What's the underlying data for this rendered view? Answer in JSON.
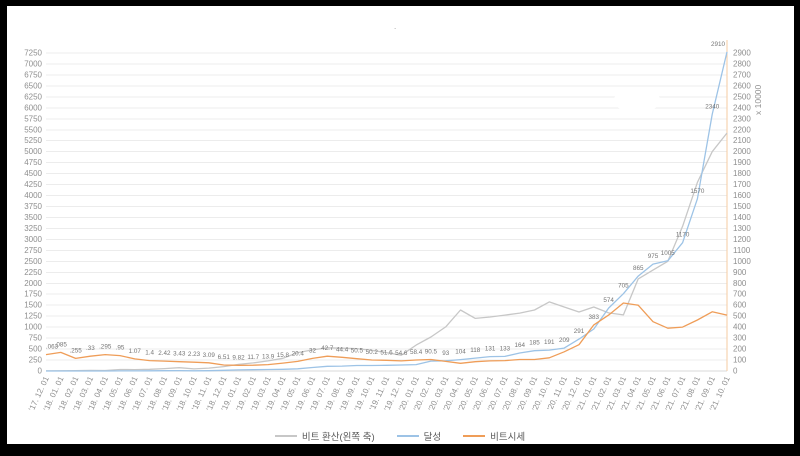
{
  "decorations": {
    "dot": "."
  },
  "chart_data": {
    "type": "line",
    "title": "",
    "legend_position": "bottom",
    "grid": true,
    "categories": [
      "'17. 12. 01",
      "'18. 01. 01",
      "'18. 02. 01",
      "'18. 03. 01",
      "'18. 04. 01",
      "'18. 05. 01",
      "'18. 06. 01",
      "'18. 07. 01",
      "'18. 08. 01",
      "'18. 09. 01",
      "'18. 10. 01",
      "'18. 11. 01",
      "'18. 12. 01",
      "'19. 01. 01",
      "'19. 02. 01",
      "'19. 03. 01",
      "'19. 04. 01",
      "'19. 05. 01",
      "'19. 06. 01",
      "'19. 07. 01",
      "'19. 08. 01",
      "'19. 09. 01",
      "'19. 10. 01",
      "'19. 11. 01",
      "'19. 12. 01",
      "'20. 01. 01",
      "'20. 02. 01",
      "'20. 03. 01",
      "'20. 04. 01",
      "'20. 05. 01",
      "'20. 06. 01",
      "'20. 07. 01",
      "'20. 08. 01",
      "'20. 09. 01",
      "'20. 10. 01",
      "'20. 11. 01",
      "'20. 12. 01",
      "'21. 01. 01",
      "'21. 02. 01",
      "'21. 03. 01",
      "'21. 04. 01",
      "'21. 05. 01",
      "'21. 06. 01",
      "'21. 07. 01",
      "'21. 08. 01",
      "'21. 09. 01",
      "'21. 10. 01"
    ],
    "left_axis": {
      "min": 0,
      "max": 7250,
      "step": 250
    },
    "right_axis": {
      "min": 0,
      "max": 2900,
      "step": 100,
      "unit": "x 10000"
    },
    "series": [
      {
        "name": "비트 환산(왼쪽 축)",
        "axis": "left",
        "color": "#c7c7c7",
        "values": [
          3,
          5,
          10,
          14,
          12,
          35,
          32,
          38,
          55,
          75,
          48,
          65,
          100,
          150,
          185,
          230,
          290,
          420,
          480,
          530,
          520,
          510,
          470,
          420,
          360,
          590,
          775,
          1005,
          1390,
          1200,
          1230,
          1275,
          1320,
          1390,
          1575,
          1460,
          1345,
          1460,
          1325,
          1280,
          2100,
          2300,
          2500,
          3300,
          4300,
          5000,
          5425
        ]
      },
      {
        "name": "달성",
        "axis": "right",
        "color": "#9dc3e6",
        "values": [
          0.063,
          0.085,
          0.255,
          0.33,
          0.295,
          0.95,
          1.07,
          1.4,
          2.42,
          3.43,
          2.23,
          3.09,
          6.51,
          9.82,
          11.7,
          13.9,
          15.8,
          20.4,
          32,
          42.7,
          44.4,
          50.5,
          50.2,
          51.6,
          54.6,
          58.4,
          90.5,
          93,
          104,
          118,
          131,
          133,
          164,
          185,
          191,
          209,
          291,
          383,
          574,
          705,
          865,
          975,
          1005,
          1170,
          1570,
          2340,
          2910
        ],
        "point_labels": [
          ".063",
          ".085",
          ".255",
          ".33",
          ".295",
          ".95",
          "1.07",
          "1.4",
          "2.42",
          "3.43",
          "2.23",
          "3.09",
          "6.51",
          "9.82",
          "11.7",
          "13.9",
          "15.8",
          "20.4",
          "32",
          "42.7",
          "44.4",
          "50.5",
          "50.2",
          "51.6",
          "54.6",
          "58.4",
          "90.5",
          "93",
          "104",
          "118",
          "131",
          "133",
          "164",
          "185",
          "191",
          "209",
          "291",
          "383",
          "574",
          "705",
          "865",
          "975",
          "1005",
          "1170",
          "1570",
          "2340",
          "2910"
        ]
      },
      {
        "name": "비트시세",
        "axis": "right",
        "color": "#ef9d58",
        "values": [
          150,
          170,
          115,
          135,
          150,
          140,
          110,
          95,
          90,
          85,
          80,
          75,
          55,
          52,
          53,
          58,
          72,
          88,
          115,
          135,
          125,
          112,
          100,
          98,
          92,
          100,
          105,
          88,
          70,
          85,
          92,
          95,
          105,
          105,
          120,
          175,
          240,
          420,
          510,
          620,
          600,
          450,
          390,
          400,
          465,
          540,
          510
        ]
      }
    ]
  }
}
